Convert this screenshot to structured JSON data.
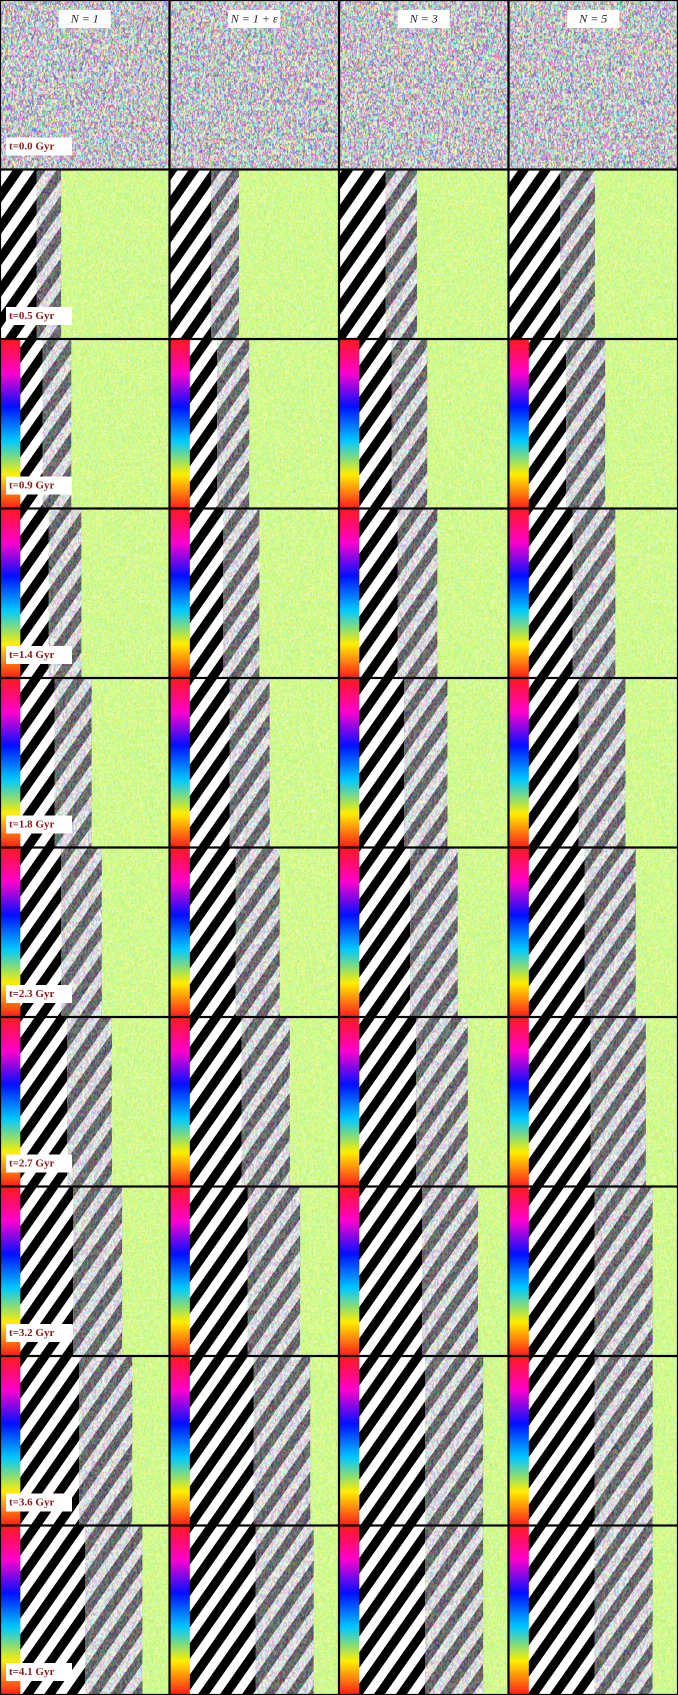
{
  "columns": [
    "N = 1",
    "N = 1 + ε",
    "N = 3",
    "N = 5"
  ],
  "rows": [
    "t=0.0 Gyr",
    "t=0.5 Gyr",
    "t=0.9 Gyr",
    "t=1.4 Gyr",
    "t=1.8 Gyr",
    "t=2.3 Gyr",
    "t=2.7 Gyr",
    "t=3.2 Gyr",
    "t=3.6 Gyr",
    "t=4.1 Gyr"
  ]
}
